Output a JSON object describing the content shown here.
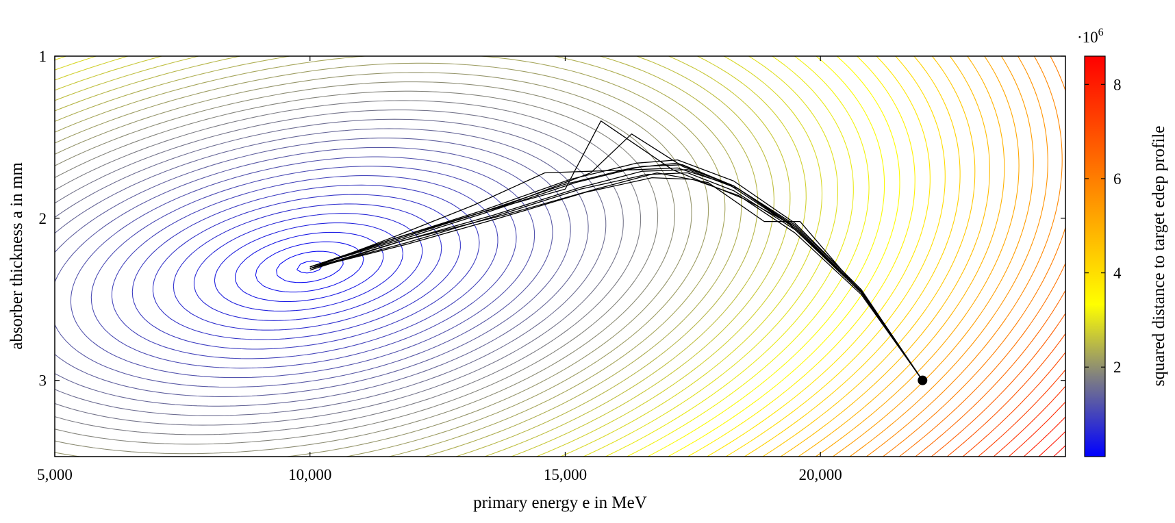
{
  "chart_data": {
    "type": "line",
    "xlabel": "primary energy e in MeV",
    "ylabel": "absorber thickness a in mm",
    "xlim": [
      5000,
      24800
    ],
    "ylim": [
      3.47,
      1.0
    ],
    "x_ticks": [
      5000,
      10000,
      15000,
      20000
    ],
    "x_tick_labels": [
      "5,000",
      "10,000",
      "15,000",
      "20,000"
    ],
    "y_ticks": [
      1,
      2,
      3
    ],
    "y_tick_labels": [
      "1",
      "2",
      "3"
    ],
    "contour": {
      "description_field": "squared distance to target edep profile",
      "minimum": {
        "x": 10000,
        "y": 2.3
      },
      "colormap": [
        "#0000ff",
        "#808080",
        "#ffff00",
        "#ff0000"
      ]
    },
    "colorbar": {
      "label": "squared distance to target edep profile",
      "multiplier": "·10",
      "multiplier_exp": "6",
      "range": [
        0.1,
        8.6
      ],
      "ticks": [
        2,
        4,
        6,
        8
      ],
      "tick_labels": [
        "2",
        "4",
        "6",
        "8"
      ]
    },
    "start_point": {
      "x": 22000,
      "y": 3.0
    },
    "trajectories": [
      {
        "x": [
          22000,
          20800,
          19500,
          18300,
          17300,
          16500,
          15200,
          13500,
          11800,
          10000
        ],
        "y": [
          3.0,
          2.45,
          2.05,
          1.8,
          1.67,
          1.68,
          1.78,
          1.96,
          2.13,
          2.3
        ]
      },
      {
        "x": [
          22000,
          20800,
          19500,
          18300,
          17200,
          16400,
          15100,
          13400,
          11700,
          10000
        ],
        "y": [
          3.0,
          2.44,
          2.03,
          1.77,
          1.64,
          1.66,
          1.76,
          1.95,
          2.12,
          2.3
        ]
      },
      {
        "x": [
          22000,
          20800,
          19500,
          18300,
          17400,
          16600,
          15300,
          13600,
          11900,
          10000
        ],
        "y": [
          3.0,
          2.46,
          2.07,
          1.83,
          1.72,
          1.73,
          1.82,
          1.99,
          2.15,
          2.31
        ]
      },
      {
        "x": [
          22000,
          20800,
          19500,
          18400,
          17500,
          16700,
          15400,
          13700,
          11900,
          10000
        ],
        "y": [
          3.0,
          2.47,
          2.09,
          1.86,
          1.76,
          1.75,
          1.84,
          2.0,
          2.16,
          2.31
        ]
      },
      {
        "x": [
          22000,
          20800,
          19400,
          18200,
          17200,
          16300,
          15000,
          13300,
          11600,
          10000
        ],
        "y": [
          3.0,
          2.45,
          2.04,
          1.79,
          1.66,
          1.69,
          1.79,
          1.97,
          2.13,
          2.31
        ]
      },
      {
        "x": [
          22000,
          20800,
          19500,
          18500,
          17100,
          15700,
          15000,
          13400,
          11700,
          10000
        ],
        "y": [
          3.0,
          2.45,
          2.05,
          1.88,
          1.7,
          1.4,
          1.82,
          1.96,
          2.12,
          2.3
        ]
      },
      {
        "x": [
          22000,
          20800,
          19500,
          18300,
          17300,
          16300,
          15500,
          14000,
          12000,
          10000
        ],
        "y": [
          3.0,
          2.44,
          2.04,
          1.8,
          1.68,
          1.48,
          1.72,
          1.9,
          2.1,
          2.3
        ]
      },
      {
        "x": [
          22000,
          20800,
          19600,
          18900,
          17800,
          16800,
          15600,
          13800,
          11800,
          10000
        ],
        "y": [
          3.0,
          2.46,
          2.02,
          2.02,
          1.78,
          1.72,
          1.82,
          1.98,
          2.14,
          2.32
        ]
      },
      {
        "x": [
          22000,
          20800,
          19500,
          18300,
          17200,
          16400,
          14600,
          13200,
          11600,
          10000
        ],
        "y": [
          3.0,
          2.45,
          2.05,
          1.8,
          1.69,
          1.7,
          1.72,
          1.92,
          2.12,
          2.31
        ]
      },
      {
        "x": [
          22000,
          20800,
          19500,
          18400,
          17400,
          16500,
          15300,
          13600,
          11800,
          10000
        ],
        "y": [
          3.0,
          2.45,
          2.06,
          1.82,
          1.7,
          1.71,
          1.81,
          1.98,
          2.14,
          2.31
        ]
      }
    ]
  }
}
